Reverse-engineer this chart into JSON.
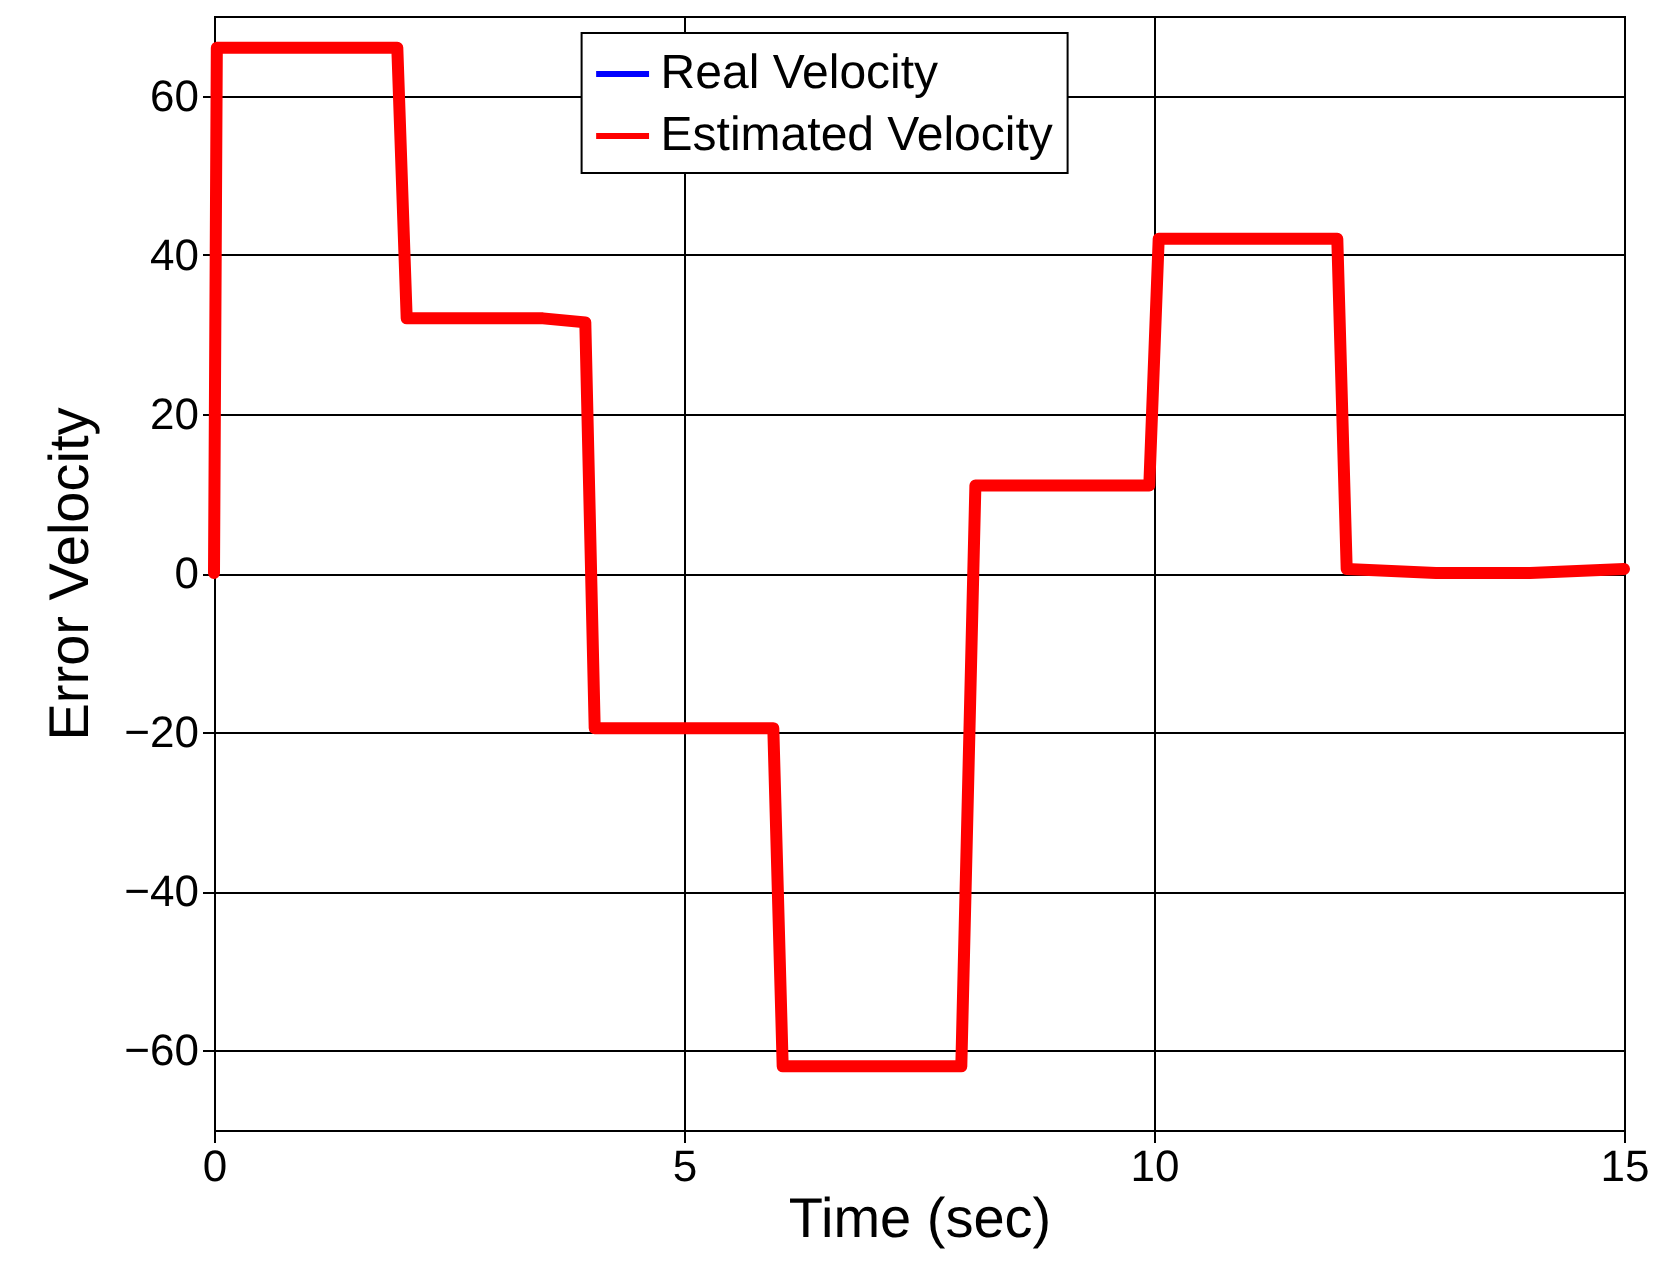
{
  "chart_data": {
    "type": "line",
    "xlabel": "Time (sec)",
    "ylabel": "Error Velocity",
    "xlim": [
      0,
      15
    ],
    "xticks": [
      0,
      5,
      10,
      15
    ],
    "ylim": [
      -70,
      70
    ],
    "yticks": [
      -60,
      -40,
      -20,
      0,
      20,
      40,
      60
    ],
    "grid": true,
    "legend": "top",
    "line_style": "solid",
    "marker": "none",
    "x": [
      0,
      0.03,
      1.95,
      2.05,
      3.5,
      3.95,
      4.05,
      5.0,
      5.95,
      6.05,
      7.0,
      7.95,
      8.1,
      9.0,
      9.95,
      10.05,
      11.0,
      11.95,
      12.05,
      13.0,
      14.0,
      15.0
    ],
    "series": [
      {
        "name": "Real Velocity",
        "color": "#0000ff",
        "values": [
          null,
          null,
          null,
          null,
          null,
          null,
          null,
          null,
          null,
          null,
          null,
          null,
          null,
          null,
          null,
          null,
          null,
          null,
          null,
          null,
          null,
          null
        ]
      },
      {
        "name": "Estimated Velocity",
        "color": "#ff0000",
        "values": [
          0,
          66,
          66,
          32,
          32,
          31.5,
          -19.5,
          -19.5,
          -19.5,
          -62,
          -62,
          -62,
          11,
          11,
          11,
          42,
          42,
          42,
          0.5,
          0,
          0,
          0.5
        ]
      }
    ]
  }
}
